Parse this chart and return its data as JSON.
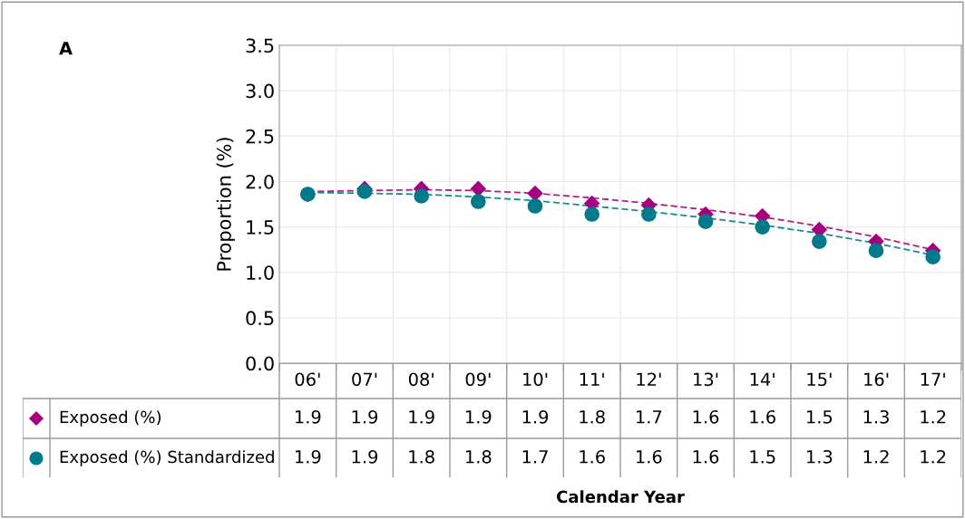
{
  "chart_data": {
    "type": "scatter",
    "title": "A",
    "annotations": [
      "Calendar Year"
    ],
    "ylabel": "Proportion (%)",
    "categories": [
      "06'",
      "07'",
      "08'",
      "09'",
      "10'",
      "11'",
      "12'",
      "13'",
      "14'",
      "15'",
      "16'",
      "17'"
    ],
    "ylim": [
      0,
      3.5
    ],
    "yticks": [
      {
        "value": 0,
        "label": "0.0"
      },
      0.5,
      {
        "value": 1,
        "label": "1.0"
      },
      1.5,
      {
        "value": 2,
        "label": "2.0"
      },
      2.5,
      {
        "value": 3,
        "label": "3.0"
      },
      3.5
    ],
    "grid": true,
    "legend": "bottom",
    "series": [
      {
        "name": "Exposed (%)",
        "color": "#a5007d",
        "marker": "diamond",
        "values": [
          1.86,
          1.92,
          1.92,
          1.92,
          1.87,
          1.76,
          1.74,
          1.64,
          1.62,
          1.47,
          1.34,
          1.24
        ],
        "value_labels": [
          "1.9",
          "1.9",
          "1.9",
          "1.9",
          "1.9",
          "1.8",
          "1.7",
          "1.6",
          "1.6",
          "1.5",
          "1.3",
          "1.2"
        ]
      },
      {
        "name": "Exposed (%) Standardized",
        "color": "#007a8a",
        "marker": "circle",
        "values": [
          1.86,
          1.89,
          1.84,
          1.78,
          1.73,
          1.64,
          1.64,
          1.56,
          1.5,
          1.34,
          1.24,
          1.17
        ],
        "value_labels": [
          "1.9",
          "1.9",
          "1.8",
          "1.8",
          "1.7",
          "1.6",
          "1.6",
          "1.6",
          "1.5",
          "1.3",
          "1.2",
          "1.2"
        ]
      },
      {
        "type": "line",
        "color": "#b0208a",
        "line_style": "dashed",
        "values": [
          1.89,
          1.9,
          1.91,
          1.9,
          1.87,
          1.82,
          1.76,
          1.69,
          1.61,
          1.51,
          1.39,
          1.25
        ]
      },
      {
        "type": "line",
        "color": "#1a8a98",
        "line_style": "dashed",
        "values": [
          1.88,
          1.87,
          1.86,
          1.83,
          1.79,
          1.73,
          1.67,
          1.6,
          1.52,
          1.43,
          1.32,
          1.19
        ]
      }
    ]
  }
}
